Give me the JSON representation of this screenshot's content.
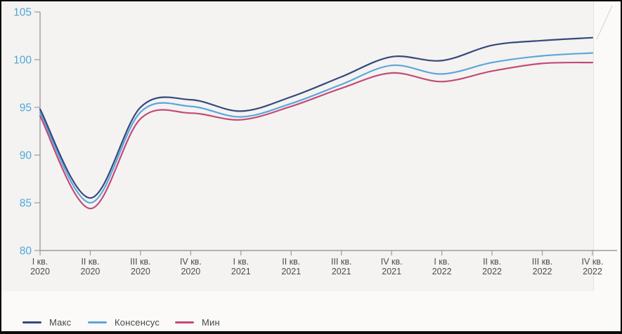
{
  "window": {
    "background": "#f4f3f1",
    "frame_color": "#0b0b0b"
  },
  "chart_data": {
    "type": "line",
    "title": "",
    "xlabel": "",
    "ylabel": "",
    "ylim": [
      80,
      105
    ],
    "y_ticks": [
      80,
      85,
      90,
      95,
      100,
      105
    ],
    "grid": false,
    "legend_position": "bottom-left",
    "axis_color": "#9c9c9c",
    "y_label_color": "#4fa7da",
    "x_label_color": "#4b4b4b",
    "categories": [
      {
        "quarter": "I кв.",
        "year": "2020"
      },
      {
        "quarter": "II кв.",
        "year": "2020"
      },
      {
        "quarter": "III кв.",
        "year": "2020"
      },
      {
        "quarter": "IV кв.",
        "year": "2020"
      },
      {
        "quarter": "I кв.",
        "year": "2021"
      },
      {
        "quarter": "II кв.",
        "year": "2021"
      },
      {
        "quarter": "III кв.",
        "year": "2021"
      },
      {
        "quarter": "IV кв.",
        "year": "2021"
      },
      {
        "quarter": "I кв.",
        "year": "2022"
      },
      {
        "quarter": "II кв.",
        "year": "2022"
      },
      {
        "quarter": "III кв.",
        "year": "2022"
      },
      {
        "quarter": "IV кв.",
        "year": "2022"
      }
    ],
    "series": [
      {
        "name": "Макс",
        "color": "#35497b",
        "values": [
          94.8,
          85.5,
          95.0,
          95.8,
          94.6,
          96.1,
          98.2,
          100.3,
          99.9,
          101.5,
          102.0,
          102.3
        ]
      },
      {
        "name": "Консенсус",
        "color": "#5ca6db",
        "values": [
          94.5,
          85.0,
          94.5,
          95.1,
          94.0,
          95.4,
          97.4,
          99.4,
          98.5,
          99.7,
          100.4,
          100.7
        ]
      },
      {
        "name": "Мин",
        "color": "#c34b78",
        "values": [
          94.1,
          84.4,
          93.8,
          94.4,
          93.7,
          95.1,
          97.0,
          98.6,
          97.7,
          98.8,
          99.6,
          99.7
        ]
      }
    ]
  }
}
